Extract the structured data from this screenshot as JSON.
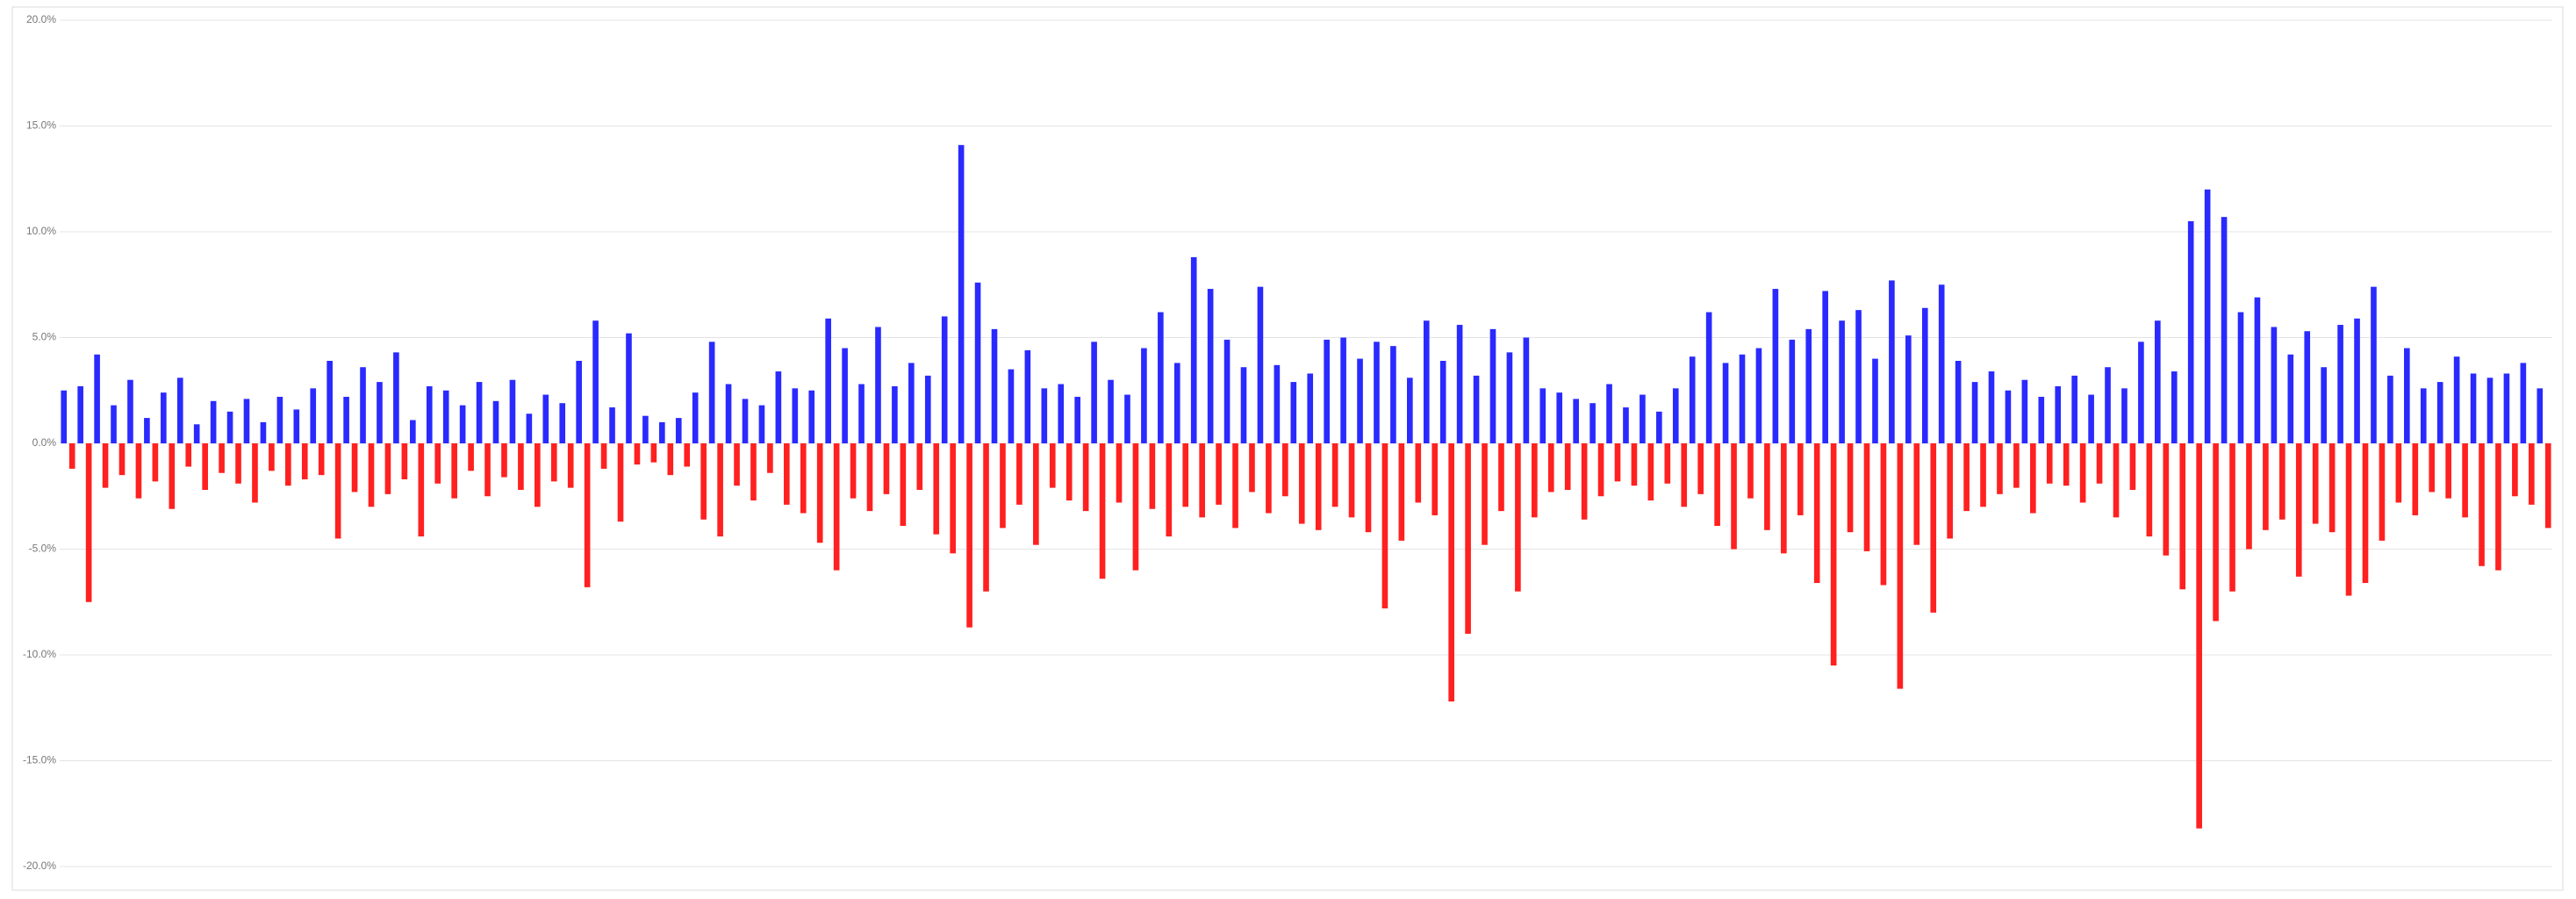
{
  "chart_data": {
    "type": "bar",
    "values": [
      2.5,
      -1.2,
      2.7,
      -7.5,
      4.2,
      -2.1,
      1.8,
      -1.5,
      3.0,
      -2.6,
      1.2,
      -1.8,
      2.4,
      -3.1,
      3.1,
      -1.1,
      0.9,
      -2.2,
      2.0,
      -1.4,
      1.5,
      -1.9,
      2.1,
      -2.8,
      1.0,
      -1.3,
      2.2,
      -2.0,
      1.6,
      -1.7,
      2.6,
      -1.5,
      3.9,
      -4.5,
      2.2,
      -2.3,
      3.6,
      -3.0,
      2.9,
      -2.4,
      4.3,
      -1.7,
      1.1,
      -4.4,
      2.7,
      -1.9,
      2.5,
      -2.6,
      1.8,
      -1.3,
      2.9,
      -2.5,
      2.0,
      -1.6,
      3.0,
      -2.2,
      1.4,
      -3.0,
      2.3,
      -1.8,
      1.9,
      -2.1,
      3.9,
      -6.8,
      5.8,
      -1.2,
      1.7,
      -3.7,
      5.2,
      -1.0,
      1.3,
      -0.9,
      1.0,
      -1.5,
      1.2,
      -1.1,
      2.4,
      -3.6,
      4.8,
      -4.4,
      2.8,
      -2.0,
      2.1,
      -2.7,
      1.8,
      -1.4,
      3.4,
      -2.9,
      2.6,
      -3.3,
      2.5,
      -4.7,
      5.9,
      -6.0,
      4.5,
      -2.6,
      2.8,
      -3.2,
      5.5,
      -2.4,
      2.7,
      -3.9,
      3.8,
      -2.2,
      3.2,
      -4.3,
      6.0,
      -5.2,
      14.1,
      -8.7,
      7.6,
      -7.0,
      5.4,
      -4.0,
      3.5,
      -2.9,
      4.4,
      -4.8,
      2.6,
      -2.1,
      2.8,
      -2.7,
      2.2,
      -3.2,
      4.8,
      -6.4,
      3.0,
      -2.8,
      2.3,
      -6.0,
      4.5,
      -3.1,
      6.2,
      -4.4,
      3.8,
      -3.0,
      8.8,
      -3.5,
      7.3,
      -2.9,
      4.9,
      -4.0,
      3.6,
      -2.3,
      7.4,
      -3.3,
      3.7,
      -2.5,
      2.9,
      -3.8,
      3.3,
      -4.1,
      4.9,
      -3.0,
      5.0,
      -3.5,
      4.0,
      -4.2,
      4.8,
      -7.8,
      4.6,
      -4.6,
      3.1,
      -2.8,
      5.8,
      -3.4,
      3.9,
      -12.2,
      5.6,
      -9.0,
      3.2,
      -4.8,
      5.4,
      -3.2,
      4.3,
      -7.0,
      5.0,
      -3.5,
      2.6,
      -2.3,
      2.4,
      -2.2,
      2.1,
      -3.6,
      1.9,
      -2.5,
      2.8,
      -1.8,
      1.7,
      -2.0,
      2.3,
      -2.7,
      1.5,
      -1.9,
      2.6,
      -3.0,
      4.1,
      -2.4,
      6.2,
      -3.9,
      3.8,
      -5.0,
      4.2,
      -2.6,
      4.5,
      -4.1,
      7.3,
      -5.2,
      4.9,
      -3.4,
      5.4,
      -6.6,
      7.2,
      -10.5,
      5.8,
      -4.2,
      6.3,
      -5.1,
      4.0,
      -6.7,
      7.7,
      -11.6,
      5.1,
      -4.8,
      6.4,
      -8.0,
      7.5,
      -4.5,
      3.9,
      -3.2,
      2.9,
      -3.0,
      3.4,
      -2.4,
      2.5,
      -2.1,
      3.0,
      -3.3,
      2.2,
      -1.9,
      2.7,
      -2.0,
      3.2,
      -2.8,
      2.3,
      -1.9,
      3.6,
      -3.5,
      2.6,
      -2.2,
      4.8,
      -4.4,
      5.8,
      -5.3,
      3.4,
      -6.9,
      10.5,
      -18.2,
      12.0,
      -8.4,
      10.7,
      -7.0,
      6.2,
      -5.0,
      6.9,
      -4.1,
      5.5,
      -3.6,
      4.2,
      -6.3,
      5.3,
      -3.8,
      3.6,
      -4.2,
      5.6,
      -7.2,
      5.9,
      -6.6,
      7.4,
      -4.6,
      3.2,
      -2.8,
      4.5,
      -3.4,
      2.6,
      -2.3,
      2.9,
      -2.6,
      4.1,
      -3.5,
      3.3,
      -5.8,
      3.1,
      -6.0,
      3.3,
      -2.5,
      3.8,
      -2.9,
      2.6,
      -4.0
    ],
    "color_positive": "#2a2aff",
    "color_negative": "#ff2020",
    "ylim": [
      -20,
      20
    ],
    "yticks": [
      {
        "value": -20,
        "label": "-20.0%"
      },
      {
        "value": -15,
        "label": "-15.0%"
      },
      {
        "value": -10,
        "label": "-10.0%"
      },
      {
        "value": -5,
        "label": "-5.0%"
      },
      {
        "value": 0,
        "label": "0.0%"
      },
      {
        "value": 5,
        "label": "5.0%"
      },
      {
        "value": 10,
        "label": "10.0%"
      },
      {
        "value": 15,
        "label": "15.0%"
      },
      {
        "value": 20,
        "label": "20.0%"
      }
    ],
    "grid": true
  }
}
